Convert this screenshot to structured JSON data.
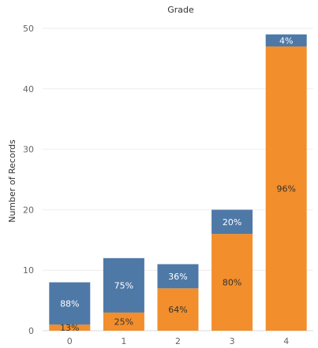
{
  "chart_data": {
    "type": "bar",
    "stacked": true,
    "title": "Grade",
    "xlabel": "",
    "ylabel": "Number of Records",
    "categories": [
      "0",
      "1",
      "2",
      "3",
      "4"
    ],
    "ylim": [
      0,
      50
    ],
    "yticks": [
      "0",
      "10",
      "20",
      "30",
      "40",
      "50"
    ],
    "grid": true,
    "series": [
      {
        "color": "#f28e2b",
        "label_color": "#333333",
        "values": [
          1,
          3,
          7,
          16,
          47
        ],
        "labels": [
          "13%",
          "25%",
          "64%",
          "80%",
          "96%"
        ]
      },
      {
        "color": "#4e79a7",
        "label_color": "#ffffff",
        "values": [
          7,
          9,
          4,
          4,
          2
        ],
        "labels": [
          "88%",
          "75%",
          "36%",
          "20%",
          "4%"
        ]
      }
    ]
  }
}
